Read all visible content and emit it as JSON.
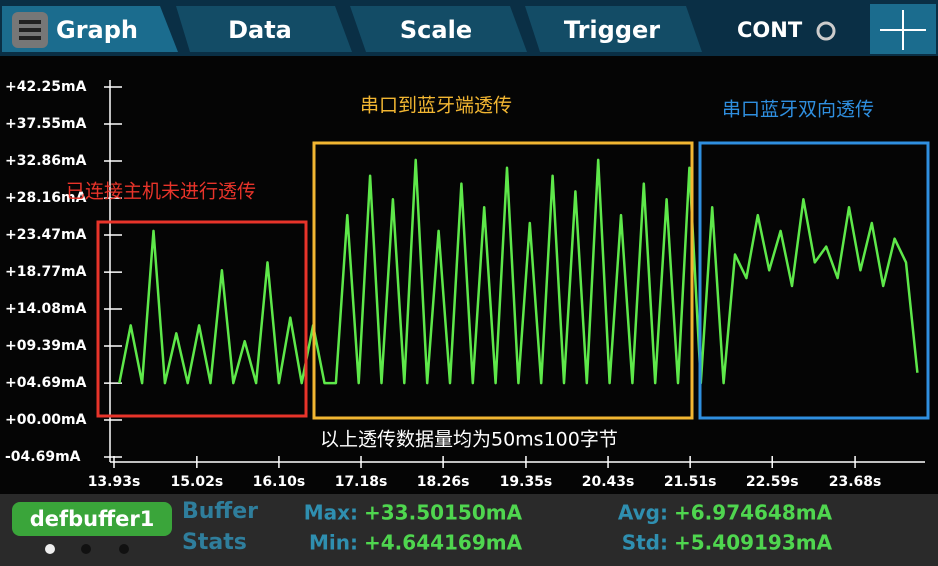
{
  "tabs": [
    "Graph",
    "Data",
    "Scale",
    "Trigger"
  ],
  "mode": "CONT",
  "chart_data": {
    "type": "line",
    "xlim": [
      13.93,
      24.6
    ],
    "xticks": [
      {
        "value": 13.93,
        "label": "13.93s"
      },
      {
        "value": 15.02,
        "label": "15.02s"
      },
      {
        "value": 16.1,
        "label": "16.10s"
      },
      {
        "value": 17.18,
        "label": "17.18s"
      },
      {
        "value": 18.26,
        "label": "18.26s"
      },
      {
        "value": 19.35,
        "label": "19.35s"
      },
      {
        "value": 20.43,
        "label": "20.43s"
      },
      {
        "value": 21.51,
        "label": "21.51s"
      },
      {
        "value": 22.59,
        "label": "22.59s"
      },
      {
        "value": 23.68,
        "label": "23.68s"
      }
    ],
    "ylim": [
      -4.69,
      42.25
    ],
    "yticks": [
      {
        "value": 42.25,
        "label": "+42.25mA"
      },
      {
        "value": 37.55,
        "label": "+37.55mA"
      },
      {
        "value": 32.86,
        "label": "+32.86mA"
      },
      {
        "value": 28.16,
        "label": "+28.16mA"
      },
      {
        "value": 23.47,
        "label": "+23.47mA"
      },
      {
        "value": 18.77,
        "label": "+18.77mA"
      },
      {
        "value": 14.08,
        "label": "+14.08mA"
      },
      {
        "value": 9.39,
        "label": "+09.39mA"
      },
      {
        "value": 4.69,
        "label": "+04.69mA"
      },
      {
        "value": 0,
        "label": "+00.00mA"
      },
      {
        "value": -4.69,
        "label": "-04.69mA"
      }
    ],
    "x": [
      14.0,
      14.15,
      14.3,
      14.45,
      14.6,
      14.75,
      14.9,
      15.05,
      15.2,
      15.35,
      15.5,
      15.65,
      15.8,
      15.95,
      16.1,
      16.25,
      16.4,
      16.55,
      16.7,
      16.85,
      17.0,
      17.15,
      17.3,
      17.45,
      17.6,
      17.75,
      17.9,
      18.05,
      18.2,
      18.35,
      18.5,
      18.65,
      18.8,
      18.95,
      19.1,
      19.25,
      19.4,
      19.55,
      19.7,
      19.85,
      20.0,
      20.15,
      20.3,
      20.45,
      20.6,
      20.75,
      20.9,
      21.05,
      21.2,
      21.35,
      21.5,
      21.65,
      21.8,
      21.95,
      22.1,
      22.25,
      22.4,
      22.55,
      22.7,
      22.85,
      23.0,
      23.15,
      23.3,
      23.45,
      23.6,
      23.75,
      23.9,
      24.05,
      24.2,
      24.35,
      24.5
    ],
    "series": [
      {
        "color": "#5ee84a",
        "values": [
          4.69,
          12,
          4.69,
          24,
          4.69,
          11,
          4.69,
          12,
          4.69,
          19,
          4.69,
          10,
          4.69,
          20,
          4.69,
          13,
          4.69,
          12,
          4.69,
          4.69,
          26,
          4.69,
          31,
          4.69,
          28,
          4.69,
          33,
          4.69,
          24,
          4.69,
          30,
          4.69,
          27,
          4.69,
          32,
          4.69,
          25,
          4.69,
          31,
          4.69,
          29,
          4.69,
          33,
          4.69,
          26,
          4.69,
          30,
          4.69,
          28,
          4.69,
          32,
          4.69,
          27,
          4.69,
          21,
          18,
          26,
          19,
          24,
          17,
          28,
          20,
          22,
          18,
          27,
          19,
          25,
          17,
          23,
          20,
          6
        ]
      }
    ],
    "annotations": [
      {
        "text": "已连接主机未进行透传",
        "color": "#e8342a"
      },
      {
        "text": "串口到蓝牙端透传",
        "color": "#f2b632"
      },
      {
        "text": "串口蓝牙双向透传",
        "color": "#2f8fe0"
      }
    ],
    "note": "以上透传数据量均为50ms100字节"
  },
  "footer": {
    "buffer": "defbuffer1",
    "stats_label": [
      "Buffer",
      "Stats"
    ],
    "stats": [
      {
        "label": "Max:",
        "value": "+33.50150mA"
      },
      {
        "label": "Min:",
        "value": "+4.644169mA"
      },
      {
        "label": "Avg:",
        "value": "+6.974648mA"
      },
      {
        "label": "Std:",
        "value": "+5.409193mA"
      }
    ]
  }
}
